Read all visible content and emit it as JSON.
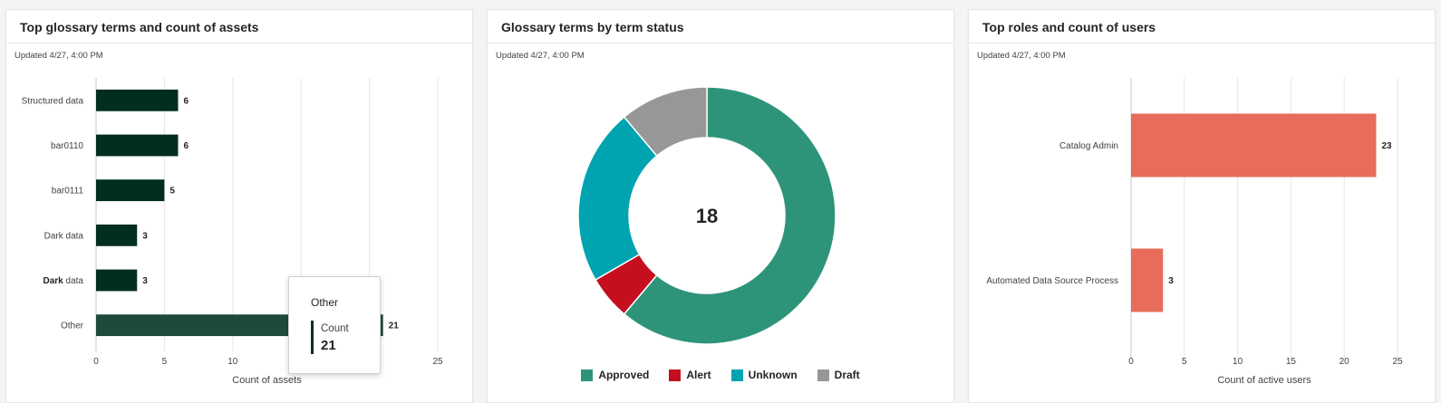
{
  "cards": [
    {
      "title": "Top glossary terms and count of assets",
      "updated": "Updated 4/27, 4:00 PM",
      "chart_data": {
        "type": "bar",
        "orientation": "horizontal",
        "categories": [
          "Structured data",
          "bar0110",
          "bar0111",
          "Dark data",
          "Dark data",
          "Other"
        ],
        "values": [
          6,
          6,
          5,
          3,
          3,
          21
        ],
        "xlabel": "Count of assets",
        "xlim": [
          0,
          25
        ],
        "xticks": [
          0,
          5,
          10,
          15,
          20,
          25
        ],
        "highlight": "Other",
        "color": "#012e1f",
        "highlight_color": "#1e4a3b"
      },
      "tooltip": {
        "title": "Other",
        "label": "Count",
        "value": "21"
      }
    },
    {
      "title": "Glossary terms by term status",
      "updated": "Updated 4/27, 4:00 PM",
      "chart_data": {
        "type": "pie",
        "donut": true,
        "center_label": "18",
        "slices": [
          {
            "name": "Approved",
            "value": 11,
            "color": "#2d947a"
          },
          {
            "name": "Alert",
            "value": 1,
            "color": "#c50f1f"
          },
          {
            "name": "Unknown",
            "value": 4,
            "color": "#00a3b0"
          },
          {
            "name": "Draft",
            "value": 2,
            "color": "#979797"
          }
        ]
      }
    },
    {
      "title": "Top roles and count of users",
      "updated": "Updated 4/27, 4:00 PM",
      "chart_data": {
        "type": "bar",
        "orientation": "horizontal",
        "categories": [
          "Catalog Admin",
          "Automated Data Source Process"
        ],
        "values": [
          23,
          3
        ],
        "xlabel": "Count of active users",
        "xlim": [
          0,
          25
        ],
        "xticks": [
          0,
          5,
          10,
          15,
          20,
          25
        ],
        "color": "#e76c5a"
      }
    }
  ]
}
